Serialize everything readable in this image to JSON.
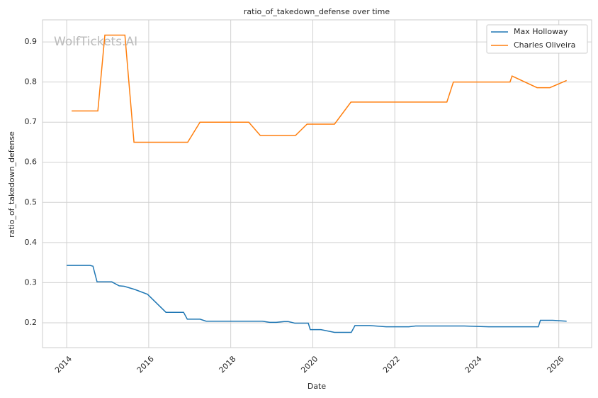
{
  "chart_data": {
    "type": "line",
    "title": "ratio_of_takedown_defense over time",
    "x_label": "Date",
    "y_label": "ratio_of_takedown_defense",
    "watermark": "WolfTickets.AI",
    "xlim": [
      2013.41,
      2026.8
    ],
    "ylim": [
      0.138,
      0.955
    ],
    "xticks": [
      2014,
      2016,
      2018,
      2020,
      2022,
      2024,
      2026
    ],
    "yticks": [
      0.2,
      0.3,
      0.4,
      0.5,
      0.6,
      0.7,
      0.8,
      0.9
    ],
    "grid": true,
    "legend": "upper right",
    "series": [
      {
        "name": "Max Holloway",
        "color": "#1f77b4",
        "x": [
          2014.0,
          2014.57,
          2014.64,
          2014.74,
          2015.1,
          2015.28,
          2015.4,
          2015.66,
          2015.97,
          2016.42,
          2016.85,
          2016.94,
          2017.25,
          2017.4,
          2018.77,
          2018.95,
          2019.11,
          2019.3,
          2019.4,
          2019.56,
          2019.89,
          2019.94,
          2020.2,
          2020.53,
          2020.94,
          2021.03,
          2021.39,
          2021.79,
          2022.34,
          2022.51,
          2023.69,
          2024.29,
          2025.5,
          2025.55,
          2025.85,
          2026.19
        ],
        "values": [
          0.343,
          0.343,
          0.341,
          0.302,
          0.302,
          0.292,
          0.291,
          0.283,
          0.271,
          0.226,
          0.226,
          0.209,
          0.209,
          0.204,
          0.204,
          0.201,
          0.201,
          0.203,
          0.203,
          0.199,
          0.199,
          0.183,
          0.183,
          0.176,
          0.176,
          0.193,
          0.193,
          0.19,
          0.19,
          0.192,
          0.192,
          0.19,
          0.19,
          0.206,
          0.206,
          0.204
        ]
      },
      {
        "name": "Charles Oliveira",
        "color": "#ff7f0e",
        "x": [
          2014.12,
          2014.76,
          2014.93,
          2015.42,
          2015.64,
          2016.95,
          2017.25,
          2018.44,
          2018.72,
          2019.58,
          2019.86,
          2020.53,
          2020.93,
          2023.27,
          2023.43,
          2024.81,
          2024.86,
          2025.47,
          2025.78,
          2026.19
        ],
        "values": [
          0.728,
          0.728,
          0.917,
          0.917,
          0.65,
          0.65,
          0.7,
          0.7,
          0.667,
          0.667,
          0.695,
          0.695,
          0.75,
          0.75,
          0.8,
          0.8,
          0.815,
          0.786,
          0.786,
          0.804
        ]
      }
    ]
  }
}
